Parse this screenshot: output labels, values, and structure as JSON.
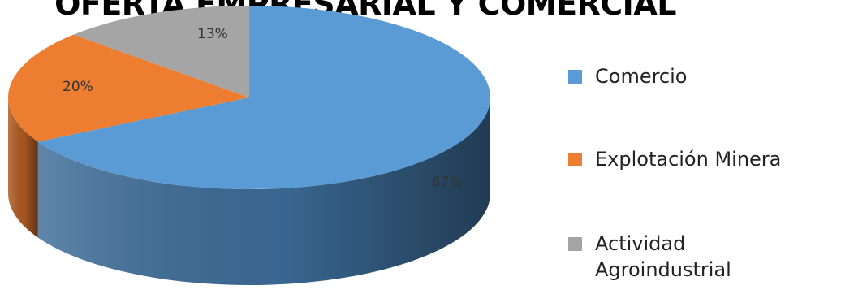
{
  "chart_data": {
    "type": "pie",
    "title": "OFERTA EMPRESARIAL Y COMERCIAL",
    "legend_position": "right",
    "three_d": true,
    "slices": [
      {
        "label": "Comercio",
        "value": 67,
        "value_label": "67%",
        "color": "#5b9bd5",
        "side_color": "#3c6b97"
      },
      {
        "label": "Explotación Minera",
        "value": 20,
        "value_label": "20%",
        "color": "#ed7d31",
        "side_color": "#ae5a21"
      },
      {
        "label": "Actividad Agroindustrial",
        "value": 13,
        "value_label": "13%",
        "color": "#a5a5a5",
        "side_color": "#7a7a7a"
      }
    ]
  }
}
